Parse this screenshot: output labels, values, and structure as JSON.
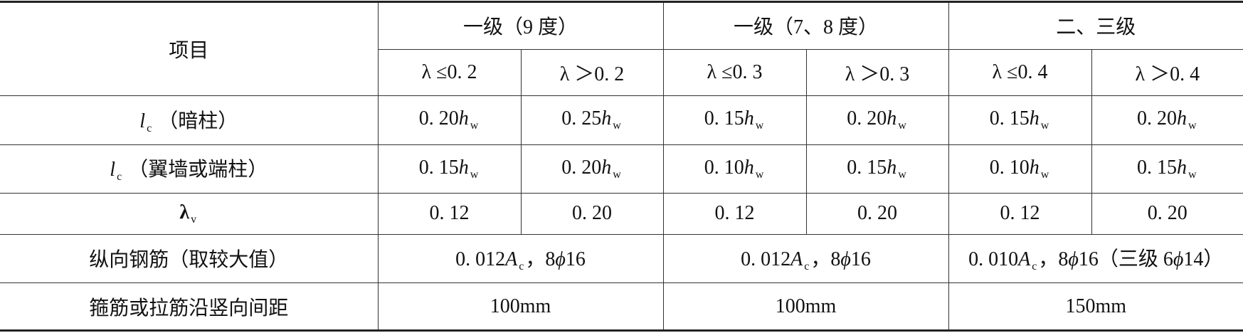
{
  "header": {
    "item": "项目",
    "groups": [
      "一级（9 度）",
      "一级（7、8 度）",
      "二、三级"
    ],
    "conditions": [
      "λ ≤0. 2",
      "λ ＞0. 2",
      "λ ≤0. 3",
      "λ ＞0. 3",
      "λ ≤0. 4",
      "λ ＞0. 4"
    ]
  },
  "rows": [
    {
      "label": [
        {
          "t": "l",
          "s": "i"
        },
        {
          "t": "c",
          "s": "sub"
        },
        {
          "t": " （暗柱）"
        }
      ],
      "cells": [
        [
          {
            "t": "0. 20"
          },
          {
            "t": "h",
            "s": "i"
          },
          {
            "t": "w",
            "s": "sub"
          }
        ],
        [
          {
            "t": "0. 25"
          },
          {
            "t": "h",
            "s": "i"
          },
          {
            "t": "w",
            "s": "sub"
          }
        ],
        [
          {
            "t": "0. 15"
          },
          {
            "t": "h",
            "s": "i"
          },
          {
            "t": "w",
            "s": "sub"
          }
        ],
        [
          {
            "t": "0. 20"
          },
          {
            "t": "h",
            "s": "i"
          },
          {
            "t": "w",
            "s": "sub"
          }
        ],
        [
          {
            "t": "0. 15"
          },
          {
            "t": "h",
            "s": "i"
          },
          {
            "t": "w",
            "s": "sub"
          }
        ],
        [
          {
            "t": "0. 20"
          },
          {
            "t": "h",
            "s": "i"
          },
          {
            "t": "w",
            "s": "sub"
          }
        ]
      ]
    },
    {
      "label": [
        {
          "t": "l",
          "s": "i"
        },
        {
          "t": "c",
          "s": "sub"
        },
        {
          "t": " （翼墙或端柱）"
        }
      ],
      "cells": [
        [
          {
            "t": "0. 15"
          },
          {
            "t": "h",
            "s": "i"
          },
          {
            "t": "w",
            "s": "sub"
          }
        ],
        [
          {
            "t": "0. 20"
          },
          {
            "t": "h",
            "s": "i"
          },
          {
            "t": "w",
            "s": "sub"
          }
        ],
        [
          {
            "t": "0. 10"
          },
          {
            "t": "h",
            "s": "i"
          },
          {
            "t": "w",
            "s": "sub"
          }
        ],
        [
          {
            "t": "0. 15"
          },
          {
            "t": "h",
            "s": "i"
          },
          {
            "t": "w",
            "s": "sub"
          }
        ],
        [
          {
            "t": "0. 10"
          },
          {
            "t": "h",
            "s": "i"
          },
          {
            "t": "w",
            "s": "sub"
          }
        ],
        [
          {
            "t": "0. 15"
          },
          {
            "t": "h",
            "s": "i"
          },
          {
            "t": "w",
            "s": "sub"
          }
        ]
      ]
    },
    {
      "label": [
        {
          "t": "λ",
          "s": "b"
        },
        {
          "t": "v",
          "s": "sub"
        }
      ],
      "cells": [
        [
          {
            "t": "0. 12"
          }
        ],
        [
          {
            "t": "0. 20"
          }
        ],
        [
          {
            "t": "0. 12"
          }
        ],
        [
          {
            "t": "0. 20"
          }
        ],
        [
          {
            "t": "0. 12"
          }
        ],
        [
          {
            "t": "0. 20"
          }
        ]
      ]
    },
    {
      "label": [
        {
          "t": "纵向钢筋（取较大值）"
        }
      ],
      "cells": [
        [
          {
            "t": "0. 012"
          },
          {
            "t": "A",
            "s": "i"
          },
          {
            "t": "c",
            "s": "sub"
          },
          {
            "t": "，8"
          },
          {
            "t": "ϕ",
            "s": "i"
          },
          {
            "t": "16"
          }
        ],
        [
          {
            "t": "0. 012"
          },
          {
            "t": "A",
            "s": "i"
          },
          {
            "t": "c",
            "s": "sub"
          },
          {
            "t": "，8"
          },
          {
            "t": "ϕ",
            "s": "i"
          },
          {
            "t": "16"
          }
        ],
        [
          {
            "t": "0. 010"
          },
          {
            "t": "A",
            "s": "i"
          },
          {
            "t": "c",
            "s": "sub"
          },
          {
            "t": "，8"
          },
          {
            "t": "ϕ",
            "s": "i"
          },
          {
            "t": "16（三级 6"
          },
          {
            "t": "ϕ",
            "s": "i"
          },
          {
            "t": "14）"
          }
        ]
      ]
    },
    {
      "label": [
        {
          "t": "箍筋或拉筋沿竖向间距"
        }
      ],
      "cells": [
        [
          {
            "t": "100mm"
          }
        ],
        [
          {
            "t": "100mm"
          }
        ],
        [
          {
            "t": "150mm"
          }
        ]
      ]
    }
  ]
}
